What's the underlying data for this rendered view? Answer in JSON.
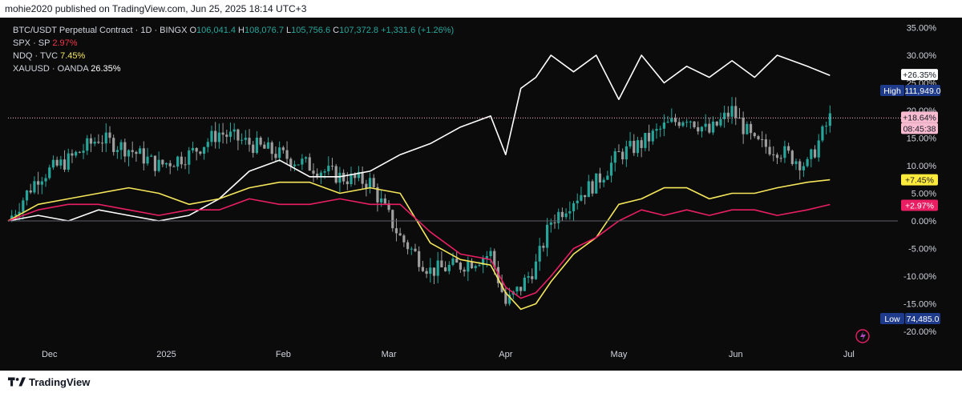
{
  "header": {
    "published": "mohie2020 published on TradingView.com, Jun 25, 2025 18:14 UTC+3"
  },
  "footer": {
    "brand": "TradingView"
  },
  "legend": {
    "main": {
      "symbol": "BTC/USDT Perpetual Contract · 1D · BINGX",
      "o_label": "O",
      "o_value": "106,041.4",
      "h_label": "H",
      "h_value": "108,076.7",
      "l_label": "L",
      "l_value": "105,756.6",
      "c_label": "C",
      "c_value": "107,372.8",
      "change": "+1,331.6 (+1.26%)"
    },
    "spx": {
      "name": "SPX · SP",
      "value": "2.97%"
    },
    "ndq": {
      "name": "NDQ · TVC",
      "value": "7.45%"
    },
    "xau": {
      "name": "XAUUSD · OANDA",
      "value": "26.35%"
    }
  },
  "badges": {
    "xau": "+26.35%",
    "high_label": "High",
    "high_value": "111,949.0",
    "btc": "+18.64%",
    "btc_countdown": "08:45:38",
    "ndq": "+7.45%",
    "spx": "+2.97%",
    "low_label": "Low",
    "low_value": "74,485.0"
  },
  "colors": {
    "up": "#26a69a",
    "down": "#9e9e9e",
    "xau": "#ffffff",
    "ndq": "#f5e65a",
    "spx": "#e91e63",
    "badge_btc": "#f8bbd0"
  },
  "chart_data": {
    "type": "line",
    "title": "BTC/USDT Perpetual Contract · 1D · BINGX",
    "ylabel": "%",
    "ylim": [
      -21,
      36
    ],
    "y_ticks": [
      "35.00%",
      "30.00%",
      "25.00%",
      "20.00%",
      "15.00%",
      "10.00%",
      "5.00%",
      "0.00%",
      "-5.00%",
      "-10.00%",
      "-15.00%",
      "-20.00%"
    ],
    "x_ticks": [
      "Dec",
      "2025",
      "Feb",
      "Mar",
      "Apr",
      "May",
      "Jun",
      "Jul"
    ],
    "x_tick_days": [
      11,
      42,
      73,
      101,
      132,
      162,
      193,
      223
    ],
    "x_range": [
      0,
      236
    ],
    "series": [
      {
        "name": "XAUUSD · OANDA",
        "x": [
          0,
          8,
          16,
          24,
          32,
          40,
          48,
          56,
          64,
          72,
          80,
          88,
          96,
          104,
          112,
          120,
          128,
          132,
          136,
          140,
          144,
          150,
          156,
          162,
          168,
          174,
          180,
          186,
          192,
          198,
          204,
          212,
          218
        ],
        "values": [
          0,
          1,
          0,
          2,
          1,
          0,
          1,
          4,
          9,
          11,
          8,
          8,
          9,
          12,
          14,
          17,
          19,
          12,
          24,
          26,
          30,
          27,
          30,
          22,
          30,
          25,
          28,
          26,
          29,
          26,
          30,
          28,
          26.35
        ]
      },
      {
        "name": "NDQ · TVC",
        "x": [
          0,
          8,
          16,
          24,
          32,
          40,
          48,
          56,
          64,
          72,
          80,
          88,
          96,
          104,
          112,
          120,
          128,
          132,
          136,
          140,
          144,
          150,
          156,
          162,
          168,
          174,
          180,
          186,
          192,
          198,
          204,
          212,
          218
        ],
        "values": [
          0,
          3,
          4,
          5,
          6,
          5,
          3,
          4,
          6,
          7,
          7,
          5,
          6,
          5,
          -4,
          -7,
          -8,
          -13,
          -16,
          -15,
          -11,
          -6,
          -3,
          3,
          4,
          6,
          6,
          4,
          5,
          5,
          6,
          7,
          7.45
        ]
      },
      {
        "name": "SPX · SP",
        "x": [
          0,
          8,
          16,
          24,
          32,
          40,
          48,
          56,
          64,
          72,
          80,
          88,
          96,
          104,
          112,
          120,
          128,
          132,
          136,
          140,
          144,
          150,
          156,
          162,
          168,
          174,
          180,
          186,
          192,
          198,
          204,
          212,
          218
        ],
        "values": [
          0,
          2,
          3,
          3,
          2,
          1,
          2,
          2,
          4,
          3,
          3,
          4,
          3,
          3,
          -2,
          -6,
          -7,
          -12,
          -14,
          -13,
          -10,
          -5,
          -3,
          0,
          2,
          1,
          2,
          1,
          2,
          2,
          1,
          2,
          2.97
        ]
      },
      {
        "name": "BTC/USDT Perpetual Contract",
        "x": [
          0,
          8,
          16,
          24,
          32,
          40,
          48,
          56,
          64,
          72,
          80,
          88,
          96,
          104,
          112,
          120,
          128,
          132,
          136,
          140,
          144,
          150,
          156,
          162,
          168,
          174,
          180,
          186,
          192,
          198,
          204,
          212,
          218
        ],
        "values": [
          0,
          8,
          11,
          15,
          13,
          10,
          12,
          16,
          14,
          12,
          10,
          8,
          7,
          -3,
          -9,
          -8,
          -6,
          -15,
          -12,
          -8,
          0,
          4,
          7,
          12,
          14,
          17,
          19,
          16,
          20,
          14,
          13,
          10,
          18.64
        ]
      }
    ],
    "grid": false,
    "legend_position": "top-left"
  }
}
